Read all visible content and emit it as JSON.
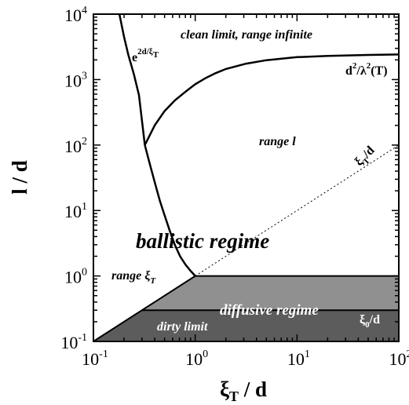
{
  "chart_data": {
    "type": "line",
    "x_scale": "log",
    "y_scale": "log",
    "xlim": [
      0.1,
      100
    ],
    "ylim": [
      0.1,
      10000
    ],
    "x_ticks": [
      0.1,
      1,
      10,
      100
    ],
    "y_ticks": [
      0.1,
      1,
      10,
      100,
      1000,
      10000
    ],
    "x_tick_labels": [
      {
        "base": "10",
        "exp": "-1"
      },
      {
        "base": "10",
        "exp": "0"
      },
      {
        "base": "10",
        "exp": "1"
      },
      {
        "base": "10",
        "exp": "2"
      }
    ],
    "y_tick_labels": [
      {
        "base": "10",
        "exp": "-1"
      },
      {
        "base": "10",
        "exp": "0"
      },
      {
        "base": "10",
        "exp": "1"
      },
      {
        "base": "10",
        "exp": "2"
      },
      {
        "base": "10",
        "exp": "3"
      },
      {
        "base": "10",
        "exp": "4"
      }
    ],
    "xlabel": {
      "main": "ξ",
      "sub": "T",
      "rest": " / d"
    },
    "ylabel": "l / d",
    "grid": false,
    "series": [
      {
        "style": "solid",
        "x": [
          0.18,
          0.2,
          0.22,
          0.25,
          0.28,
          0.32,
          0.36,
          0.4,
          0.45,
          0.5,
          0.56,
          0.63,
          0.71,
          0.8,
          0.9,
          1.0
        ],
        "y": [
          10000,
          4500,
          2400,
          1200,
          580,
          100,
          50,
          27,
          14,
          8.5,
          5.0,
          3.0,
          2.0,
          1.5,
          1.2,
          1.0
        ]
      },
      {
        "style": "solid",
        "x": [
          0.32,
          0.4,
          0.5,
          0.63,
          0.8,
          1.0,
          1.26,
          1.58,
          2.0,
          3.16,
          5.0,
          10,
          20,
          50,
          100
        ],
        "y": [
          100,
          200,
          330,
          480,
          650,
          850,
          1050,
          1250,
          1450,
          1750,
          1980,
          2200,
          2300,
          2380,
          2420
        ]
      },
      {
        "style": "dotted",
        "x": [
          1,
          100
        ],
        "y": [
          1,
          100
        ]
      }
    ],
    "regions": [
      {
        "name": "dirty limit",
        "color": "#5c5c5c",
        "polygon": [
          [
            0.1,
            0.1
          ],
          [
            100,
            0.1
          ],
          [
            100,
            0.3
          ],
          [
            0.3,
            0.3
          ]
        ]
      },
      {
        "name": "diffusive regime",
        "color": "#909090",
        "polygon": [
          [
            0.3,
            0.3
          ],
          [
            100,
            0.3
          ],
          [
            100,
            1
          ],
          [
            1,
            1
          ]
        ]
      }
    ],
    "boundary_lines": [
      {
        "x": [
          0.1,
          1
        ],
        "y": [
          0.1,
          1
        ]
      },
      {
        "x": [
          1,
          100
        ],
        "y": [
          1,
          1
        ]
      },
      {
        "x": [
          0.3,
          100
        ],
        "y": [
          0.3,
          0.3
        ]
      }
    ],
    "annotations": {
      "clean_limit": "clean limit, range infinite",
      "range_l": "range l",
      "ballistic": "ballistic regime",
      "range_xi": {
        "text": "range ξ",
        "sub": "T"
      },
      "diffusive": "diffusive regime",
      "dirty": "dirty limit",
      "exp_curve": {
        "base": "e",
        "sup": "2d/ξ",
        "sup_sub": "T"
      },
      "d2_curve": {
        "a": "d",
        "a_sup": "2",
        "slash": "/λ",
        "b_sup": "2",
        "rest": "(T)"
      },
      "xi_T_line": {
        "main": "ξ",
        "sub": "T",
        "rest": "/d"
      },
      "xi_0": {
        "main": "ξ",
        "sub": "0",
        "rest": "/d"
      }
    }
  }
}
